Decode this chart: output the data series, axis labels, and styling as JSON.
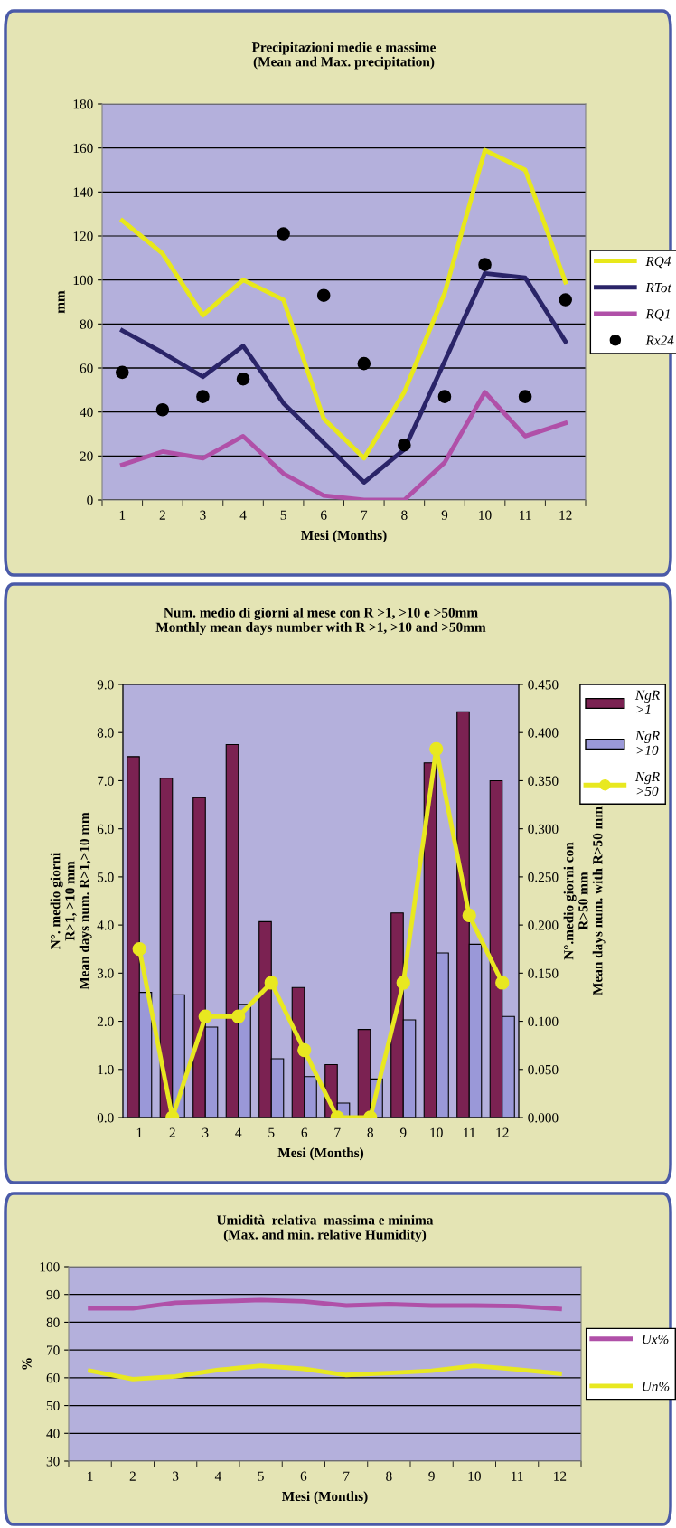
{
  "chart_data": [
    {
      "type": "line",
      "title": "Precipitazioni medie e massime\n(Mean and Max. precipitation)",
      "xlabel": "Mesi (Months)",
      "ylabel": "mm",
      "categories": [
        "1",
        "2",
        "3",
        "4",
        "5",
        "6",
        "7",
        "8",
        "9",
        "10",
        "11",
        "12"
      ],
      "ylim": [
        0,
        180
      ],
      "yticks": [
        0,
        20,
        40,
        60,
        80,
        100,
        120,
        140,
        160,
        180
      ],
      "grid": "y",
      "legend": "right",
      "series": [
        {
          "name": "RQ4",
          "color": "#e8e81a",
          "values": [
            127,
            112,
            84,
            100,
            91,
            37,
            19,
            49,
            94,
            159,
            150,
            99
          ]
        },
        {
          "name": "RTot",
          "color": "#2a2468",
          "values": [
            77,
            67,
            56,
            70,
            44,
            26,
            8,
            23,
            63,
            103,
            101,
            72
          ]
        },
        {
          "name": "RQ1",
          "color": "#b050a8",
          "values": [
            16,
            22,
            19,
            29,
            12,
            2,
            0,
            0,
            17,
            49,
            29,
            35
          ]
        },
        {
          "name": "Rx24",
          "type": "scatter",
          "color": "#000000",
          "marker": "circle",
          "values": [
            58,
            41,
            47,
            55,
            121,
            93,
            62,
            25,
            47,
            107,
            47,
            91
          ]
        }
      ]
    },
    {
      "type": "bar",
      "title": "Num. medio di giorni al mese con R >1, >10 e >50mm\nMonthly mean days number with R >1, >10 and >50mm",
      "xlabel": "Mesi (Months)",
      "ylabel": "N°. medio giorni\nR>1, >10 mm\nMean days num. R>1,>10 mm",
      "y2label": "N°.medio giorni con\nR>50 mm\nMean days num. with R>50 mm",
      "categories": [
        "1",
        "2",
        "3",
        "4",
        "5",
        "6",
        "7",
        "8",
        "9",
        "10",
        "11",
        "12"
      ],
      "ylim": [
        0,
        9
      ],
      "yticks": [
        {
          "value": 0,
          "label": "0.0"
        },
        {
          "value": 1,
          "label": "1.0"
        },
        {
          "value": 2,
          "label": "2.0"
        },
        {
          "value": 3,
          "label": "3.0"
        },
        {
          "value": 4,
          "label": "4.0"
        },
        {
          "value": 5,
          "label": "5.0"
        },
        {
          "value": 6,
          "label": "6.0"
        },
        {
          "value": 7,
          "label": "7.0"
        },
        {
          "value": 8,
          "label": "8.0"
        },
        {
          "value": 9,
          "label": "9.0"
        }
      ],
      "y2lim": [
        0,
        0.45
      ],
      "y2ticks": [
        {
          "value": 0,
          "label": "0.000"
        },
        {
          "value": 0.05,
          "label": "0.050"
        },
        {
          "value": 0.1,
          "label": "0.100"
        },
        {
          "value": 0.15,
          "label": "0.150"
        },
        {
          "value": 0.2,
          "label": "0.200"
        },
        {
          "value": 0.25,
          "label": "0.250"
        },
        {
          "value": 0.3,
          "label": "0.300"
        },
        {
          "value": 0.35,
          "label": "0.350"
        },
        {
          "value": 0.4,
          "label": "0.400"
        },
        {
          "value": 0.45,
          "label": "0.450"
        }
      ],
      "grid": false,
      "legend": "top right",
      "series": [
        {
          "name": "NgR >1",
          "color": "#7b2252",
          "values": [
            7.5,
            7.05,
            6.65,
            7.75,
            4.07,
            2.7,
            1.1,
            1.83,
            4.25,
            7.37,
            8.43,
            7.0
          ]
        },
        {
          "name": "NgR >10",
          "color": "#9a98d8",
          "values": [
            2.6,
            2.55,
            1.88,
            2.35,
            1.22,
            0.85,
            0.3,
            0.8,
            2.03,
            3.42,
            3.6,
            2.1
          ]
        },
        {
          "name": "NgR >50",
          "type": "line",
          "axis": "y2",
          "marker": "circle",
          "color": "#e8e820",
          "values": [
            0.175,
            0,
            0.105,
            0.105,
            0.14,
            0.07,
            0,
            0,
            0.14,
            0.383,
            0.21,
            0.14
          ]
        }
      ]
    },
    {
      "type": "line",
      "title": "Umidità  relativa  massima e minima\n(Max. and min. relative Humidity)",
      "xlabel": "Mesi (Months)",
      "ylabel": "%",
      "categories": [
        "1",
        "2",
        "3",
        "4",
        "5",
        "6",
        "7",
        "8",
        "9",
        "10",
        "11",
        "12"
      ],
      "ylim": [
        30,
        100
      ],
      "yticks": [
        30,
        40,
        50,
        60,
        70,
        80,
        90,
        100
      ],
      "grid": "y",
      "legend": "right",
      "series": [
        {
          "name": "Ux%",
          "color": "#b050a8",
          "values": [
            85,
            85,
            87,
            87.5,
            88,
            87.5,
            86,
            86.5,
            86,
            86,
            85.8,
            84.8
          ]
        },
        {
          "name": "Un%",
          "color": "#e8e820",
          "values": [
            62.5,
            59.5,
            60.5,
            62.8,
            64.3,
            63.2,
            61,
            61.7,
            62.5,
            64.3,
            63,
            61.5
          ]
        }
      ]
    }
  ]
}
